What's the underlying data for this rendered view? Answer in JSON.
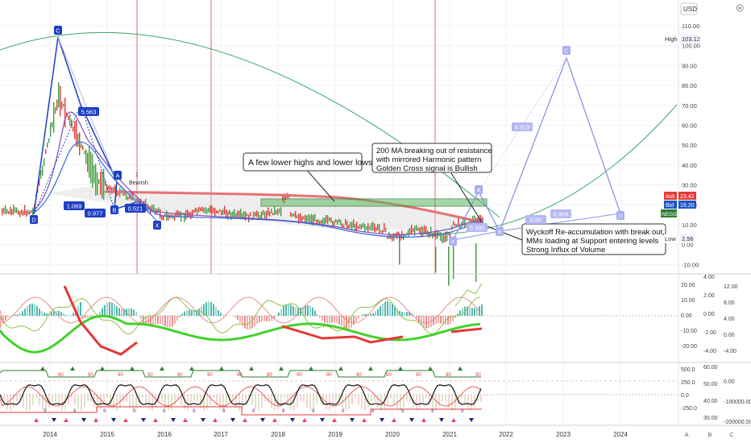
{
  "currency_label": "USD",
  "price_axis": {
    "labels": [
      "110.00",
      "100.00",
      "90.00",
      "80.00",
      "70.00",
      "60.00",
      "50.00",
      "40.00",
      "30.00",
      "20.00",
      "10.00",
      "0.00",
      "-10.00"
    ]
  },
  "price_tags": {
    "high": {
      "label": "High",
      "value": "103.12"
    },
    "ask": {
      "label": "Ask",
      "value": "23.42"
    },
    "bid": {
      "label": "Bid",
      "value": "19.20"
    },
    "symbol": "NEGG",
    "low": {
      "label": "Low",
      "value": "2.56"
    }
  },
  "time_axis": [
    "2014",
    "2015",
    "2016",
    "2017",
    "2018",
    "2019",
    "2020",
    "2021",
    "2022",
    "2023",
    "2024"
  ],
  "bottom_buttons": [
    "A",
    "B",
    "C"
  ],
  "harmonic_points": [
    "C",
    "A",
    "B",
    "D",
    "X",
    "C",
    "A",
    "B",
    "D",
    "X"
  ],
  "harmonic_ratios": [
    "5.563",
    "1.069",
    "0.977",
    "0.521",
    "4.919",
    "0.85",
    "0.908",
    "0.385"
  ],
  "bearish_label": {
    "num": "1",
    "text": "Bearish"
  },
  "annotations": {
    "lower_highs": "A few lower highs and lower lows",
    "ma_breakout": [
      "200 MA breaking out of resistance",
      "with mirrored Harmonic pattern",
      "Golden Cross signal is Bullish"
    ],
    "wyckoff": [
      "Wyckoff Re-accumulation with break out,",
      "MMs loading at Support entering levels",
      "Strong Influx of Volume"
    ]
  },
  "panel1_axis_left": [
    "20.00",
    "10.00",
    "0.00",
    "-10.00",
    "-20.00"
  ],
  "panel1_axis_mid": [
    "4.00",
    "2.00",
    "0.00",
    "-2.00",
    "-4.00"
  ],
  "panel1_axis_right": [
    "12.00",
    "8.00",
    "4.00",
    "0.00",
    "-4.00"
  ],
  "panel2_axis_left": [
    "500.0",
    "250.0",
    "0.0",
    "-250.0"
  ],
  "panel2_axis_mid": [
    "60.00",
    "50.00",
    "40.00",
    "30.00"
  ],
  "panel2_axis_right": [
    "0.00",
    "-100000.00",
    "-200000.00"
  ],
  "panel2_marker_labels": {
    "s9": "9",
    "s90": "90"
  },
  "colors": {
    "green": "#2e7d32",
    "red": "#e53935",
    "blue": "#1e3fc2",
    "lavender": "#8c91e6",
    "orange": "#f4a460"
  }
}
